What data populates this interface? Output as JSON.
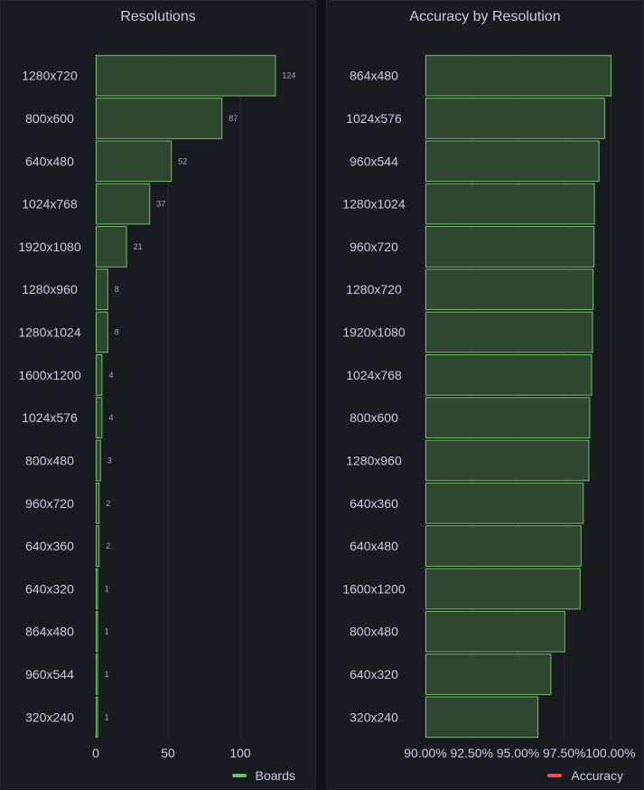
{
  "colors": {
    "bar_fill": "#2f4630",
    "bar_stroke": "#73bf69",
    "grid": "#2a2d33",
    "label": "#ccccdc",
    "value_label": "#a8a8b3",
    "legend_boards": "#73bf69",
    "legend_accuracy": "#f2495c"
  },
  "chart_data": [
    {
      "type": "bar",
      "orientation": "horizontal",
      "title": "Resolutions",
      "categories": [
        "1280x720",
        "800x600",
        "640x480",
        "1024x768",
        "1920x1080",
        "1280x960",
        "1280x1024",
        "1600x1200",
        "1024x576",
        "800x480",
        "960x720",
        "640x360",
        "640x320",
        "864x480",
        "960x544",
        "320x240"
      ],
      "series": [
        {
          "name": "Boards",
          "values": [
            124,
            87,
            52,
            37,
            21,
            8,
            8,
            4,
            4,
            3,
            2,
            2,
            1,
            1,
            1,
            1
          ]
        }
      ],
      "xlim": [
        0,
        150
      ],
      "xticks": [
        "0",
        "50",
        "100"
      ],
      "xtick_values": [
        0,
        50,
        100
      ],
      "value_labels": true,
      "legend": "bottom-right"
    },
    {
      "type": "bar",
      "orientation": "horizontal",
      "title": "Accuracy by Resolution",
      "categories": [
        "864x480",
        "1024x576",
        "960x544",
        "1280x1024",
        "960x720",
        "1280x720",
        "1920x1080",
        "1024x768",
        "800x600",
        "1280x960",
        "640x360",
        "640x480",
        "1600x1200",
        "800x480",
        "640x320",
        "320x240"
      ],
      "series": [
        {
          "name": "Accuracy",
          "values": [
            100.0,
            99.65,
            99.35,
            99.1,
            99.08,
            99.03,
            99.0,
            98.95,
            98.85,
            98.8,
            98.5,
            98.38,
            98.33,
            97.5,
            96.75,
            96.05
          ]
        }
      ],
      "xlim": [
        90,
        100
      ],
      "xticks": [
        "90.00%",
        "92.50%",
        "95.00%",
        "97.50%",
        "100.00%"
      ],
      "xtick_values": [
        90,
        92.5,
        95,
        97.5,
        100
      ],
      "legend": "bottom-right"
    }
  ]
}
